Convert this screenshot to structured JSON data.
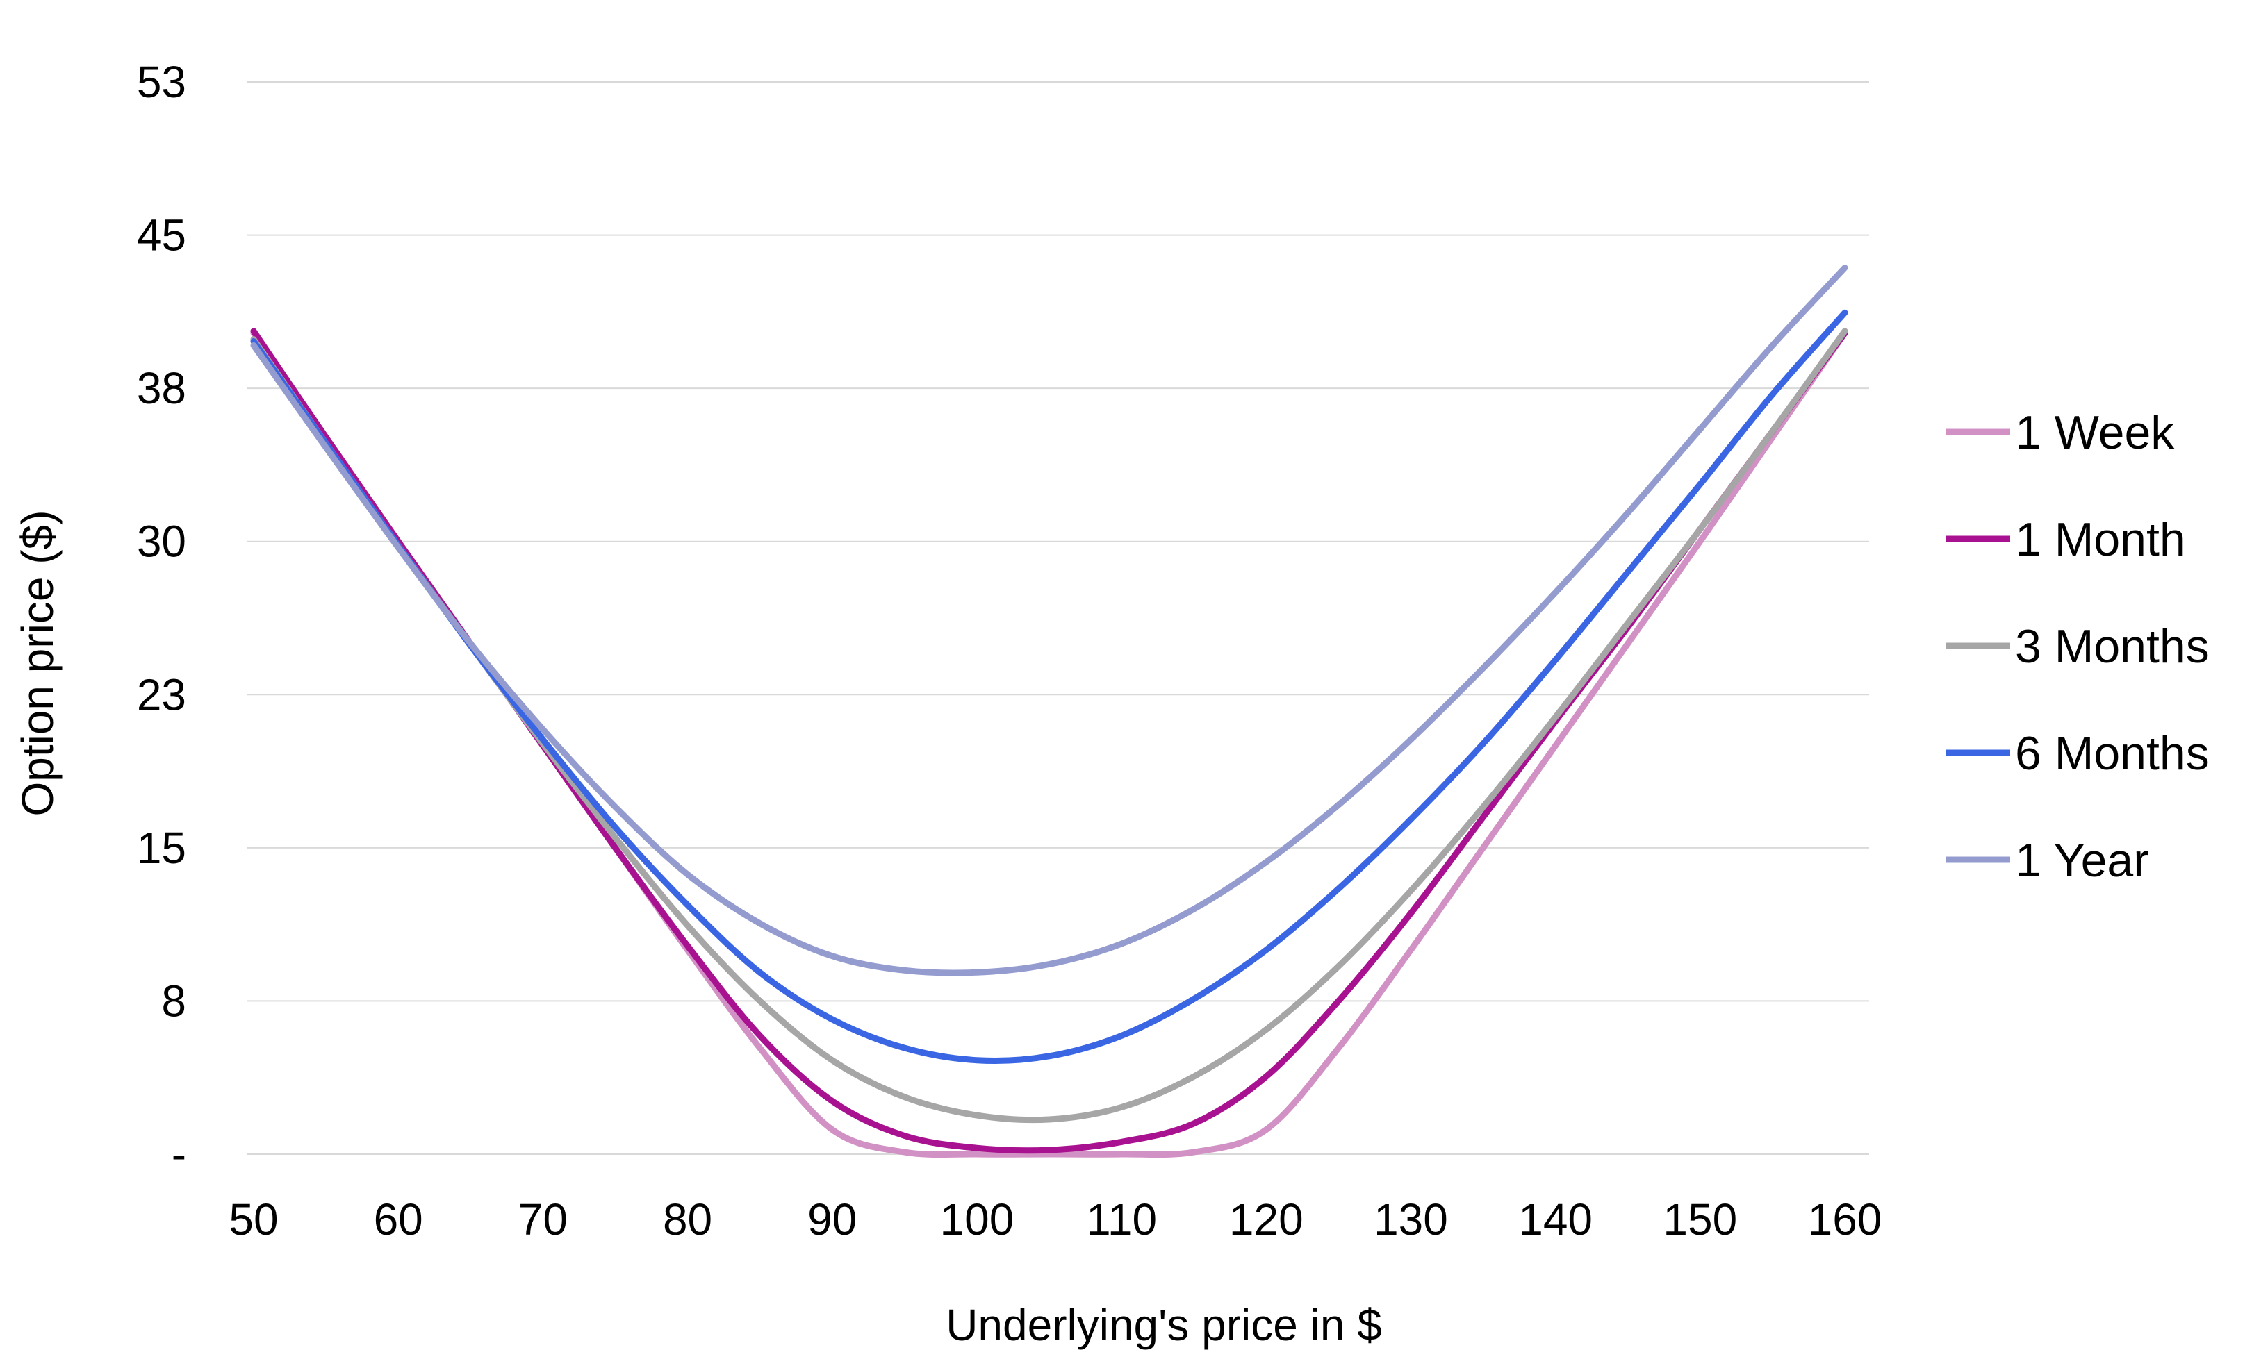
{
  "chart_data": {
    "type": "line",
    "title": "",
    "xlabel": "Underlying's price in $",
    "ylabel": "Option price ($)",
    "xlim": [
      50,
      160
    ],
    "ylim": [
      0,
      52.5
    ],
    "x_ticks": [
      50,
      60,
      70,
      80,
      90,
      100,
      110,
      120,
      130,
      140,
      150,
      160
    ],
    "y_ticks": [
      {
        "value": 0,
        "label": "-"
      },
      {
        "value": 7.5,
        "label": "8"
      },
      {
        "value": 15,
        "label": "15"
      },
      {
        "value": 22.5,
        "label": "23"
      },
      {
        "value": 30,
        "label": "30"
      },
      {
        "value": 37.5,
        "label": "38"
      },
      {
        "value": 45,
        "label": "45"
      },
      {
        "value": 52.5,
        "label": "53"
      }
    ],
    "grid": true,
    "legend_position": "right",
    "x": [
      50,
      55,
      60,
      65,
      70,
      75,
      80,
      85,
      90,
      95,
      100,
      105,
      110,
      115,
      120,
      125,
      130,
      135,
      140,
      145,
      150,
      155,
      160
    ],
    "series": [
      {
        "name": "1 Week",
        "color": "#d291c4",
        "values": [
          40.2,
          35.1,
          30.0,
          25.0,
          20.0,
          15.0,
          10.0,
          5.2,
          1.2,
          0.1,
          0.0,
          0.0,
          0.0,
          0.1,
          1.2,
          5.2,
          10.0,
          15.0,
          20.0,
          25.0,
          30.0,
          35.1,
          40.2
        ]
      },
      {
        "name": "1 Month",
        "color": "#a8118f",
        "values": [
          40.3,
          35.1,
          30.0,
          25.0,
          20.0,
          15.0,
          10.2,
          5.8,
          2.6,
          0.9,
          0.3,
          0.2,
          0.6,
          1.5,
          3.8,
          7.5,
          11.8,
          16.5,
          21.2,
          25.8,
          30.6,
          35.4,
          40.2
        ]
      },
      {
        "name": "3 Months",
        "color": "#a6a6a6",
        "values": [
          39.9,
          34.8,
          29.8,
          24.9,
          20.1,
          15.5,
          11.2,
          7.5,
          4.6,
          2.8,
          1.9,
          1.7,
          2.3,
          3.8,
          6.1,
          9.2,
          12.9,
          17.0,
          21.4,
          26.0,
          30.6,
          35.4,
          40.3
        ]
      },
      {
        "name": "6 Months",
        "color": "#3a66e3",
        "values": [
          39.8,
          34.8,
          29.8,
          24.9,
          20.3,
          16.0,
          12.2,
          8.9,
          6.6,
          5.2,
          4.6,
          4.8,
          5.8,
          7.6,
          10.0,
          13.0,
          16.4,
          20.1,
          24.2,
          28.5,
          32.8,
          37.2,
          41.2
        ]
      },
      {
        "name": "1 Year",
        "color": "#949ccf",
        "values": [
          39.6,
          34.6,
          29.7,
          25.0,
          20.8,
          17.0,
          13.7,
          11.3,
          9.7,
          9.0,
          8.9,
          9.3,
          10.3,
          12.0,
          14.3,
          17.1,
          20.3,
          23.8,
          27.5,
          31.4,
          35.5,
          39.6,
          43.4
        ]
      }
    ]
  }
}
